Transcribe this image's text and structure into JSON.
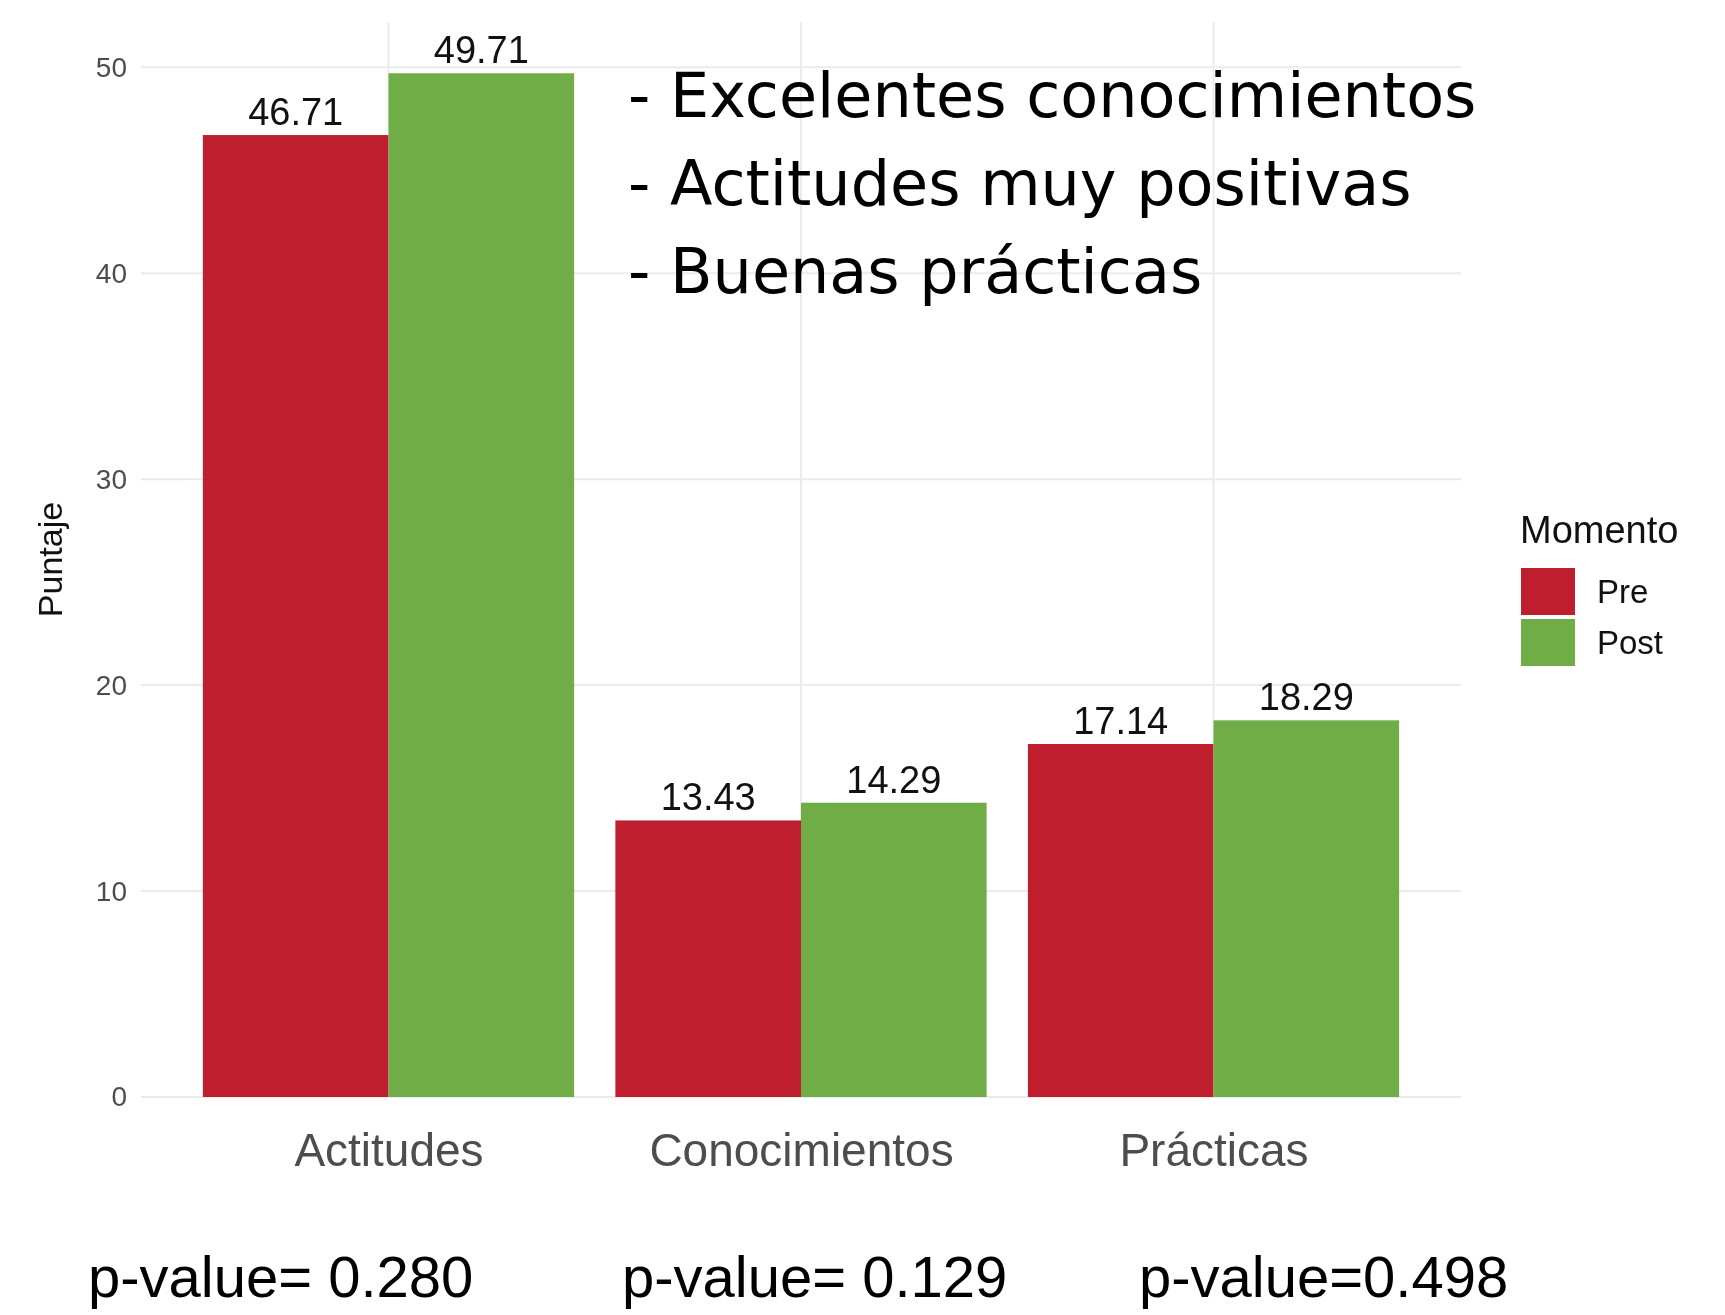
{
  "chart_data": {
    "type": "bar",
    "ylabel": "Puntaje",
    "legend_title": "Momento",
    "categories": [
      "Actitudes",
      "Conocimientos",
      "Prácticas"
    ],
    "series": [
      {
        "name": "Pre",
        "color": "#be1e2d",
        "values": [
          46.71,
          13.43,
          17.14
        ]
      },
      {
        "name": "Post",
        "color": "#70ad47",
        "values": [
          49.71,
          14.29,
          18.29
        ]
      }
    ],
    "ylim": [
      0,
      52.2
    ],
    "yticks": [
      0,
      10,
      20,
      30,
      40,
      50
    ],
    "grid": true,
    "legend": "right",
    "data_labels": true,
    "annotations": [
      "- Excelentes conocimientos",
      "- Actitudes muy positivas",
      "- Buenas prácticas",
      "p-value= 0.280",
      "p-value= 0.129",
      "p-value=0.498"
    ]
  }
}
